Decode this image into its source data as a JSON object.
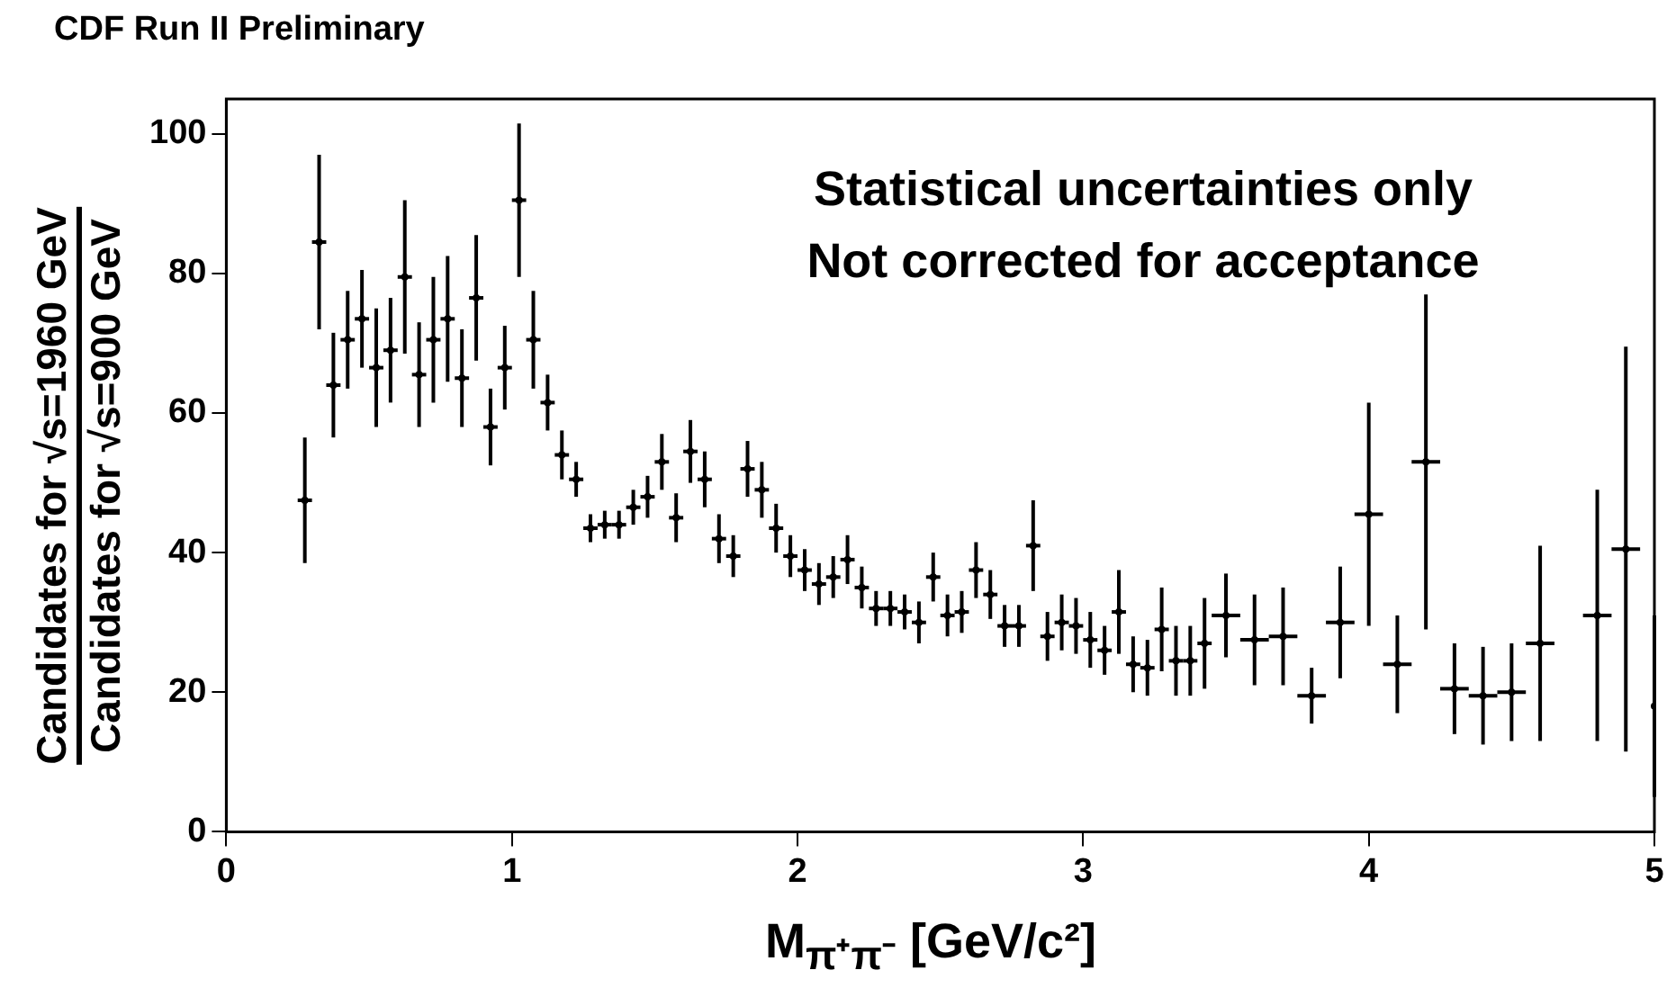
{
  "chart_data": {
    "type": "scatter",
    "title": "CDF Run II Preliminary",
    "xlabel": "M$_{π⁺π⁻}$ [GeV/c²]",
    "ylabel": "Candidates for √s=1960 GeV\nCandidates for √s=900 GeV",
    "annotations": [
      "Statistical uncertainties only",
      "Not corrected for acceptance"
    ],
    "x": [
      0.275,
      0.325,
      0.375,
      0.425,
      0.475,
      0.525,
      0.575,
      0.625,
      0.675,
      0.725,
      0.775,
      0.825,
      0.875,
      0.925,
      0.975,
      1.025,
      1.075,
      1.125,
      1.175,
      1.225,
      1.275,
      1.325,
      1.375,
      1.425,
      1.475,
      1.525,
      1.575,
      1.625,
      1.675,
      1.725,
      1.775,
      1.825,
      1.875,
      1.925,
      1.975,
      2.025,
      2.075,
      2.125,
      2.175,
      2.225,
      2.275,
      2.325,
      2.375,
      2.425,
      2.475,
      2.525,
      2.575,
      2.625,
      2.675,
      2.725,
      2.775,
      2.825,
      2.875,
      2.925,
      2.975,
      3.025,
      3.075,
      3.125,
      3.175,
      3.225,
      3.275,
      3.325,
      3.375,
      3.425,
      3.5,
      3.6,
      3.7,
      3.8,
      3.9,
      4.0,
      4.1,
      4.2,
      4.3,
      4.4,
      4.5,
      4.6,
      4.8,
      4.9,
      5.0
    ],
    "values": [
      47.5,
      84.5,
      64,
      70.5,
      73.5,
      66.5,
      69,
      79.5,
      65.5,
      70.5,
      73.5,
      65,
      76.5,
      58,
      66.5,
      90.5,
      70.5,
      61.5,
      54,
      50.5,
      43.5,
      44,
      44,
      46.5,
      48,
      53,
      45,
      54.5,
      50.5,
      42,
      39.5,
      52,
      49,
      43.5,
      39.5,
      37.5,
      35.5,
      36.5,
      39,
      35,
      32,
      32,
      31.5,
      30,
      36.5,
      31,
      31.5,
      37.5,
      34,
      29.5,
      29.5,
      41,
      28,
      30,
      29.5,
      27.5,
      26,
      31.5,
      24,
      23.5,
      29,
      24.5,
      24.5,
      27,
      31,
      27.5,
      28,
      19.5,
      30,
      45.5,
      24,
      53,
      20.5,
      19.5,
      20,
      27,
      31,
      40.5,
      18
    ],
    "errors": [
      9,
      12.5,
      7.5,
      7,
      7,
      8.5,
      7.5,
      11,
      7.5,
      9,
      9,
      7,
      9,
      5.5,
      6,
      11,
      7,
      4,
      3.5,
      2.5,
      2,
      2,
      2,
      2.5,
      3,
      4,
      3.5,
      4.5,
      4,
      3.5,
      3,
      4,
      4,
      3.5,
      3,
      3,
      3,
      3,
      3.5,
      3,
      2.5,
      2.5,
      2.5,
      3,
      3.5,
      3,
      3,
      4,
      3.5,
      3,
      3,
      6.5,
      3.5,
      4,
      4,
      4,
      3.5,
      6,
      4,
      4,
      6,
      5,
      5,
      6.5,
      6,
      6.5,
      7,
      4,
      8,
      16,
      7,
      24,
      6.5,
      7,
      7,
      14,
      18,
      29,
      13
    ],
    "xerrors": [
      0.025,
      0.025,
      0.025,
      0.025,
      0.025,
      0.025,
      0.025,
      0.025,
      0.025,
      0.025,
      0.025,
      0.025,
      0.025,
      0.025,
      0.025,
      0.025,
      0.025,
      0.025,
      0.025,
      0.025,
      0.025,
      0.025,
      0.025,
      0.025,
      0.025,
      0.025,
      0.025,
      0.025,
      0.025,
      0.025,
      0.025,
      0.025,
      0.025,
      0.025,
      0.025,
      0.025,
      0.025,
      0.025,
      0.025,
      0.025,
      0.025,
      0.025,
      0.025,
      0.025,
      0.025,
      0.025,
      0.025,
      0.025,
      0.025,
      0.025,
      0.025,
      0.025,
      0.025,
      0.025,
      0.025,
      0.025,
      0.025,
      0.025,
      0.025,
      0.025,
      0.025,
      0.025,
      0.025,
      0.025,
      0.05,
      0.05,
      0.05,
      0.05,
      0.05,
      0.05,
      0.05,
      0.05,
      0.05,
      0.05,
      0.05,
      0.05,
      0.05,
      0.05,
      null
    ],
    "color": "#000000",
    "xlim": [
      0,
      5
    ],
    "xticks": [
      0,
      1,
      2,
      3,
      4,
      5
    ],
    "ylim": [
      0,
      105
    ],
    "yticks": [
      0,
      20,
      40,
      60,
      80,
      100
    ],
    "grid": false,
    "legend": false
  }
}
